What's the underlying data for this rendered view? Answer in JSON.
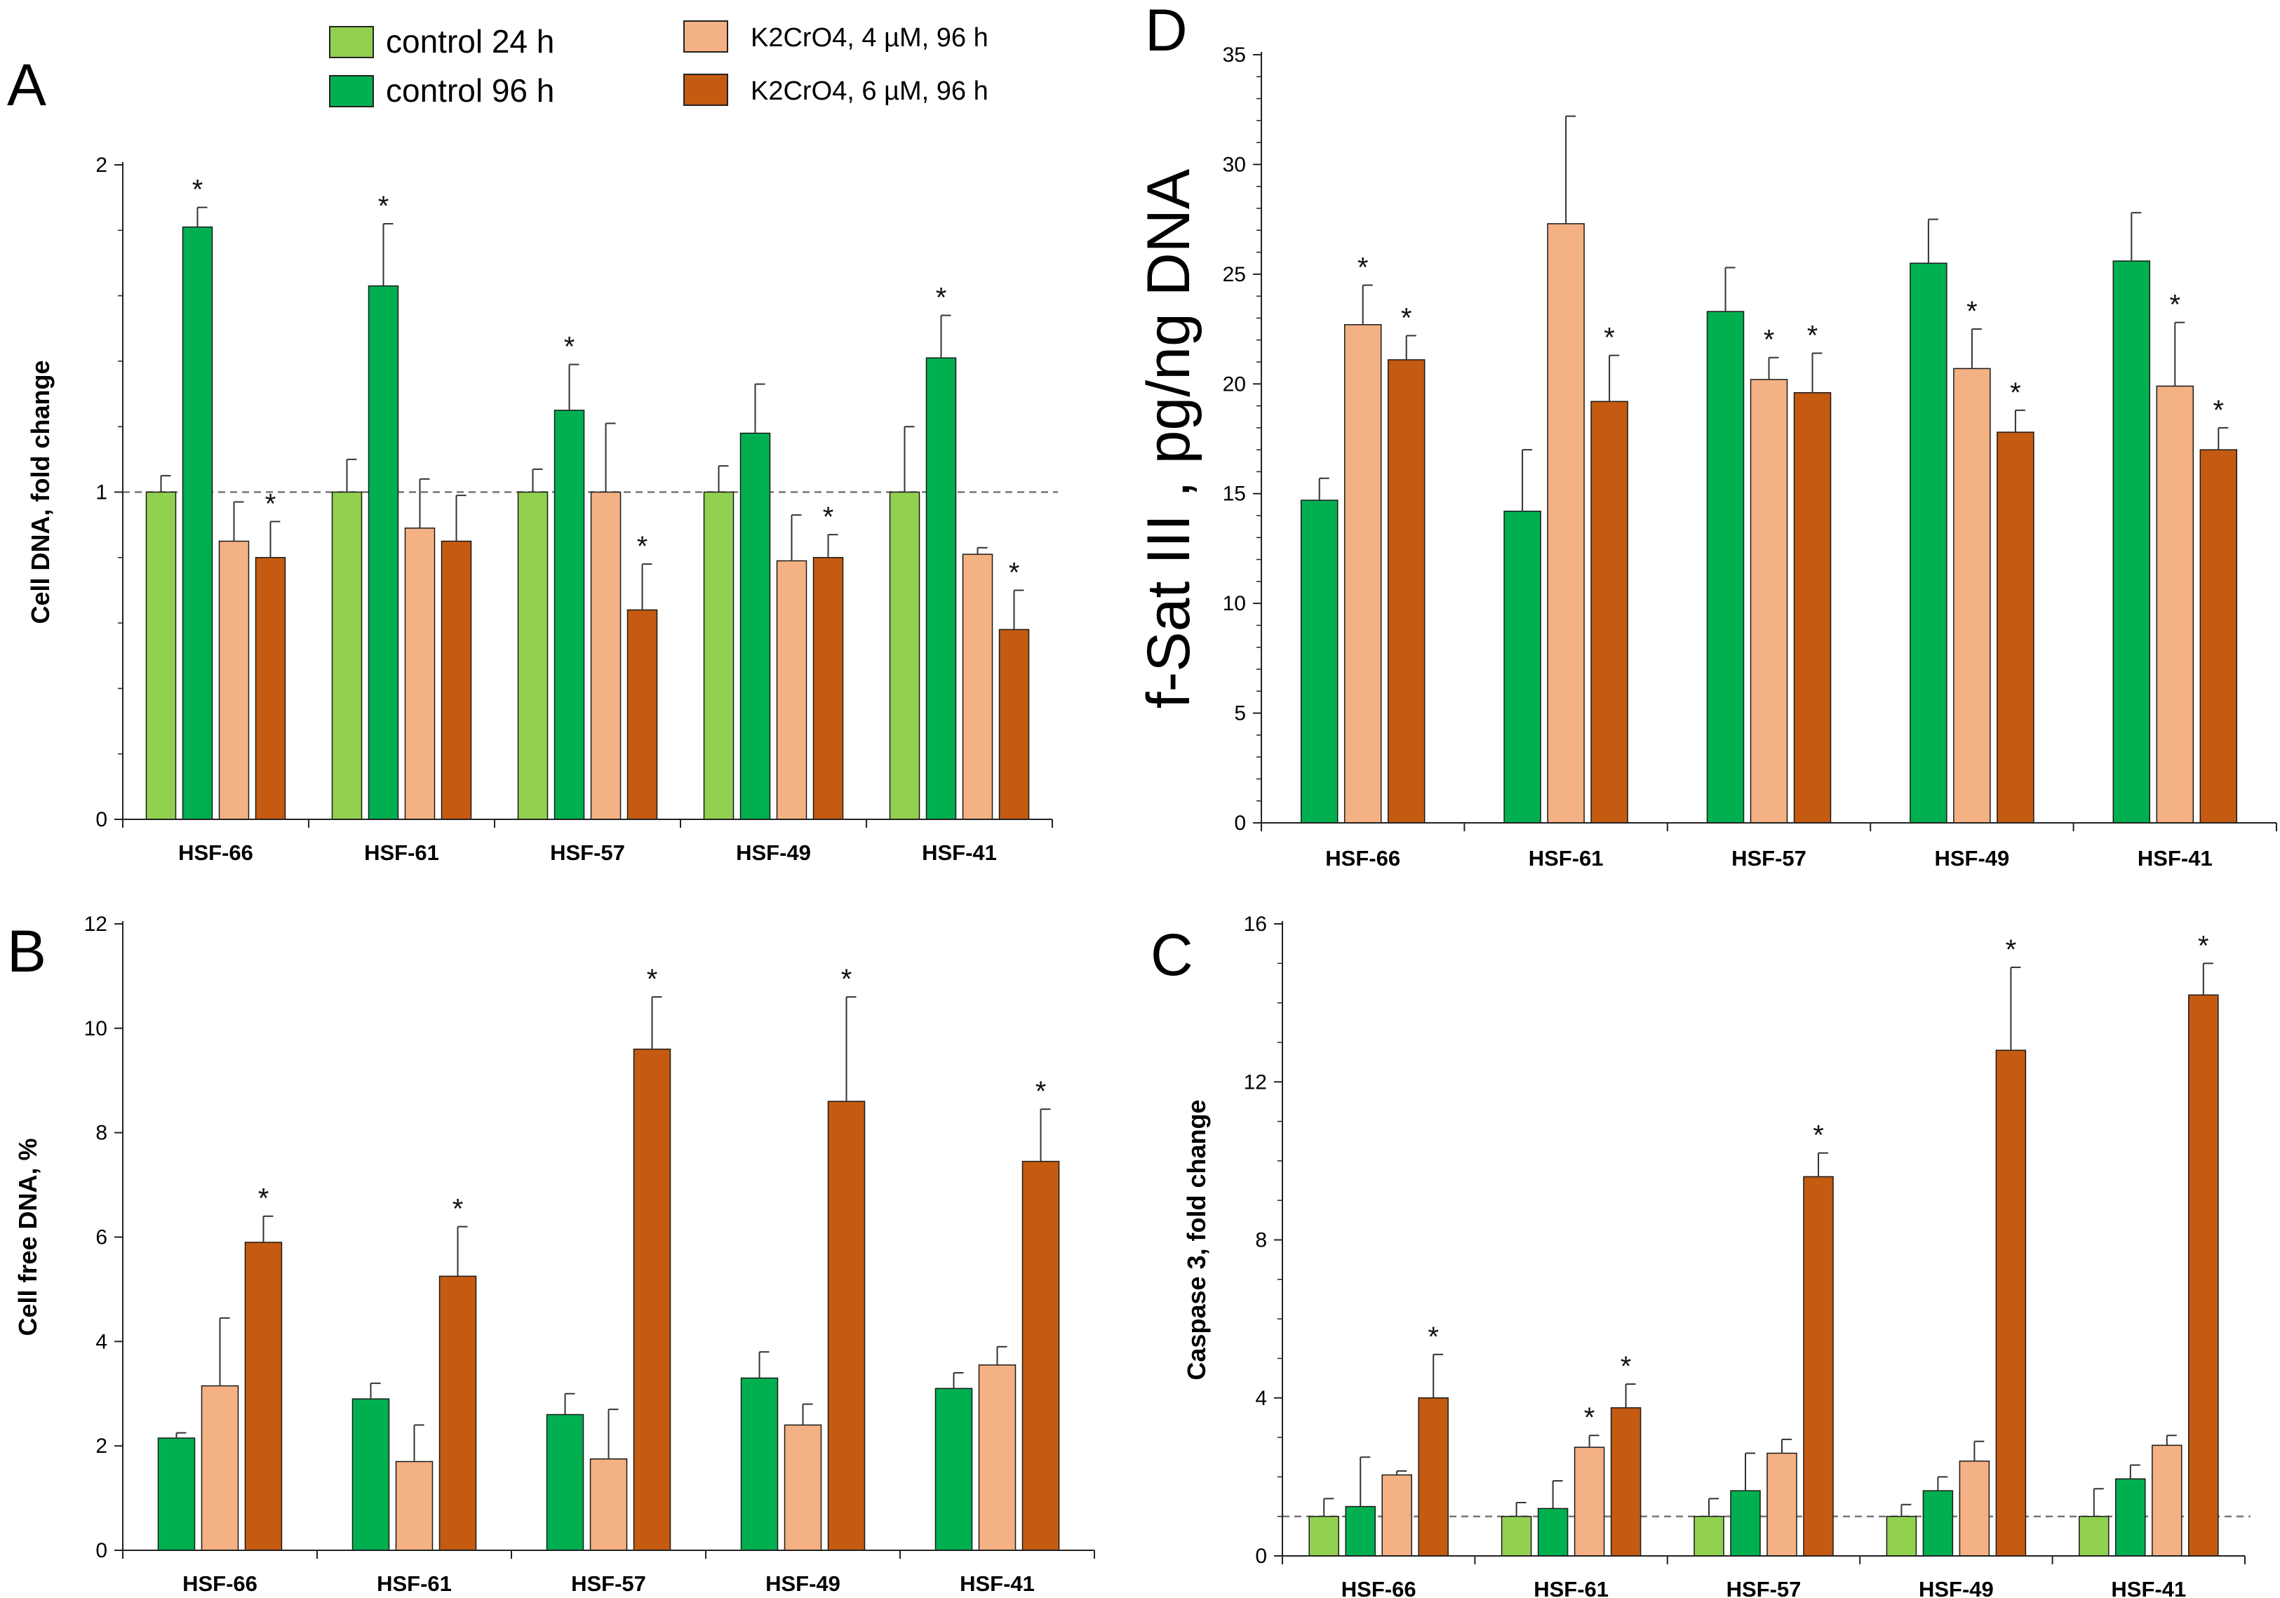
{
  "legend": {
    "entries": [
      {
        "label": "control 24 h",
        "color": "#92d050"
      },
      {
        "label": "control 96 h",
        "color": "#00b050"
      },
      {
        "label": "K2CrO4, 4 µM, 96 h",
        "color": "#f4b183"
      },
      {
        "label": "K2CrO4, 6 µM, 96 h",
        "color": "#c55a11"
      }
    ]
  },
  "chart_data": [
    {
      "panel": "A",
      "type": "bar",
      "xlabel": "",
      "ylabel": "Cell DNA, fold change",
      "ylim": [
        0,
        2
      ],
      "yticks": [
        "0",
        "1",
        "2"
      ],
      "minor_ticks": 5,
      "reference_line": 1,
      "categories": [
        "HSF-66",
        "HSF-61",
        "HSF-57",
        "HSF-49",
        "HSF-41"
      ],
      "series": [
        {
          "name": "control 24 h",
          "color": "#92d050",
          "values": [
            1.0,
            1.0,
            1.0,
            1.0,
            1.0
          ],
          "errors": [
            0.05,
            0.1,
            0.07,
            0.08,
            0.2
          ],
          "stars": [
            false,
            false,
            false,
            false,
            false
          ]
        },
        {
          "name": "control 96 h",
          "color": "#00b050",
          "values": [
            1.81,
            1.63,
            1.25,
            1.18,
            1.41
          ],
          "errors": [
            0.06,
            0.19,
            0.14,
            0.15,
            0.13
          ],
          "stars": [
            true,
            true,
            true,
            false,
            true
          ]
        },
        {
          "name": "K2CrO4, 4 µM, 96 h",
          "color": "#f4b183",
          "values": [
            0.85,
            0.89,
            1.0,
            0.79,
            0.81
          ],
          "errors": [
            0.12,
            0.15,
            0.21,
            0.14,
            0.02
          ],
          "stars": [
            false,
            false,
            false,
            false,
            false
          ]
        },
        {
          "name": "K2CrO4, 6 µM, 96 h",
          "color": "#c55a11",
          "values": [
            0.8,
            0.85,
            0.64,
            0.8,
            0.58
          ],
          "errors": [
            0.11,
            0.14,
            0.14,
            0.07,
            0.12
          ],
          "stars": [
            true,
            false,
            true,
            true,
            true
          ]
        }
      ]
    },
    {
      "panel": "B",
      "type": "bar",
      "xlabel": "",
      "ylabel": "Cell free DNA, %",
      "ylim": [
        0,
        12
      ],
      "yticks": [
        "0",
        "2",
        "4",
        "6",
        "8",
        "10",
        "12"
      ],
      "minor_ticks": 0,
      "reference_line": null,
      "categories": [
        "HSF-66",
        "HSF-61",
        "HSF-57",
        "HSF-49",
        "HSF-41"
      ],
      "series": [
        {
          "name": "control 96 h",
          "color": "#00b050",
          "values": [
            2.15,
            2.9,
            2.6,
            3.3,
            3.1
          ],
          "errors": [
            0.1,
            0.3,
            0.4,
            0.5,
            0.3
          ],
          "stars": [
            false,
            false,
            false,
            false,
            false
          ]
        },
        {
          "name": "K2CrO4, 4 µM, 96 h",
          "color": "#f4b183",
          "values": [
            3.15,
            1.7,
            1.75,
            2.4,
            3.55
          ],
          "errors": [
            1.3,
            0.7,
            0.95,
            0.4,
            0.35
          ],
          "stars": [
            false,
            false,
            false,
            false,
            false
          ]
        },
        {
          "name": "K2CrO4, 6 µM, 96 h",
          "color": "#c55a11",
          "values": [
            5.9,
            5.25,
            9.6,
            8.6,
            7.45
          ],
          "errors": [
            0.5,
            0.95,
            1.0,
            2.0,
            1.0
          ],
          "stars": [
            true,
            true,
            true,
            true,
            true
          ]
        }
      ]
    },
    {
      "panel": "D",
      "type": "bar",
      "xlabel": "",
      "ylabel": "f-Sat III , pg/ng DNA",
      "ylim": [
        0,
        35
      ],
      "yticks": [
        "0",
        "5",
        "10",
        "15",
        "20",
        "25",
        "30",
        "35"
      ],
      "minor_ticks": 5,
      "reference_line": null,
      "categories": [
        "HSF-66",
        "HSF-61",
        "HSF-57",
        "HSF-49",
        "HSF-41"
      ],
      "series": [
        {
          "name": "control 96 h",
          "color": "#00b050",
          "values": [
            14.7,
            14.2,
            23.3,
            25.5,
            25.6
          ],
          "errors": [
            1.0,
            2.8,
            2.0,
            2.0,
            2.2
          ],
          "stars": [
            false,
            false,
            false,
            false,
            false
          ]
        },
        {
          "name": "K2CrO4, 4 µM, 96 h",
          "color": "#f4b183",
          "values": [
            22.7,
            27.3,
            20.2,
            20.7,
            19.9
          ],
          "errors": [
            1.8,
            4.9,
            1.0,
            1.8,
            2.9
          ],
          "stars": [
            true,
            false,
            true,
            true,
            true
          ]
        },
        {
          "name": "K2CrO4, 6 µM, 96 h",
          "color": "#c55a11",
          "values": [
            21.1,
            19.2,
            19.6,
            17.8,
            17.0
          ],
          "errors": [
            1.1,
            2.1,
            1.8,
            1.0,
            1.0
          ],
          "stars": [
            true,
            true,
            true,
            true,
            true
          ]
        }
      ]
    },
    {
      "panel": "C",
      "type": "bar",
      "xlabel": "",
      "ylabel": "Caspase 3, fold change",
      "ylim": [
        0,
        16
      ],
      "yticks": [
        "0",
        "4",
        "8",
        "12",
        "16"
      ],
      "minor_ticks": 4,
      "reference_line": 1,
      "categories": [
        "HSF-66",
        "HSF-61",
        "HSF-57",
        "HSF-49",
        "HSF-41"
      ],
      "series": [
        {
          "name": "control 24 h",
          "color": "#92d050",
          "values": [
            1.0,
            1.0,
            1.0,
            1.0,
            1.0
          ],
          "errors": [
            0.45,
            0.35,
            0.45,
            0.3,
            0.7
          ],
          "stars": [
            false,
            false,
            false,
            false,
            false
          ]
        },
        {
          "name": "control 96 h",
          "color": "#00b050",
          "values": [
            1.25,
            1.2,
            1.65,
            1.65,
            1.95
          ],
          "errors": [
            1.25,
            0.7,
            0.95,
            0.35,
            0.35
          ],
          "stars": [
            false,
            false,
            false,
            false,
            false
          ]
        },
        {
          "name": "K2CrO4, 4 µM, 96 h",
          "color": "#f4b183",
          "values": [
            2.05,
            2.75,
            2.6,
            2.4,
            2.8
          ],
          "errors": [
            0.1,
            0.3,
            0.35,
            0.5,
            0.25
          ],
          "stars": [
            false,
            true,
            false,
            false,
            false
          ]
        },
        {
          "name": "K2CrO4, 6 µM, 96 h",
          "color": "#c55a11",
          "values": [
            4.0,
            3.75,
            9.6,
            12.8,
            14.2
          ],
          "errors": [
            1.1,
            0.6,
            0.6,
            2.1,
            0.8
          ],
          "stars": [
            true,
            true,
            true,
            true,
            true
          ]
        }
      ]
    }
  ]
}
